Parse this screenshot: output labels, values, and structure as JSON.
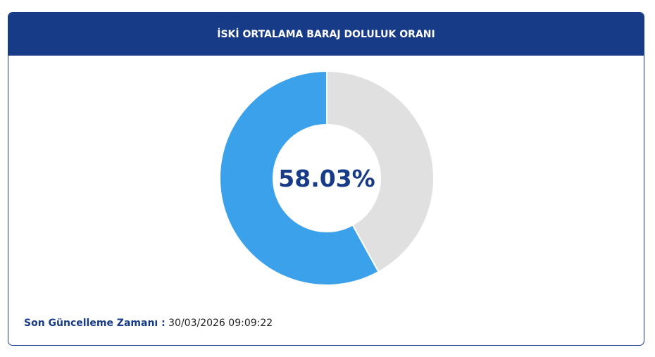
{
  "chart_data": {
    "type": "donut",
    "title": "İSKİ ORTALAMA BARAJ DOLULUK ORANI",
    "values": [
      58.03,
      41.97
    ],
    "value_labels": [
      "58.03%",
      null
    ],
    "colors": [
      "#3ba1ea",
      "#e0e0e0"
    ]
  },
  "footer": {
    "label": "Son Güncelleme Zamanı :",
    "value": "30/03/2026 09:09:22"
  }
}
